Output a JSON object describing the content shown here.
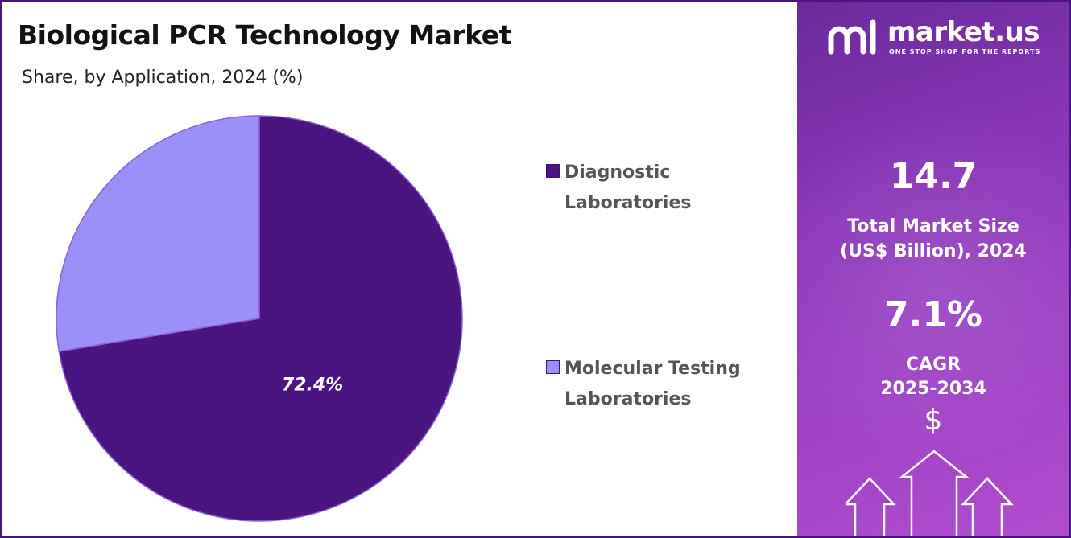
{
  "header": {
    "title": "Biological PCR Technology Market",
    "subtitle": "Share, by Application, 2024 (%)"
  },
  "chart_data": {
    "type": "pie",
    "title": "Biological PCR Technology Market",
    "subtitle": "Share, by Application, 2024 (%)",
    "categories": [
      "Diagnostic Laboratories",
      "Molecular Testing Laboratories"
    ],
    "values": [
      72.4,
      27.6
    ],
    "data_labels": [
      "72.4%",
      ""
    ],
    "colors": [
      "#4a1580",
      "#9b8ff8"
    ],
    "legend_position": "right"
  },
  "legend": [
    {
      "line1": "Diagnostic",
      "line2": "Laboratories",
      "color": "#4a1580"
    },
    {
      "line1": "Molecular Testing",
      "line2": "Laboratories",
      "color": "#9b8ff8"
    }
  ],
  "panel": {
    "brand": "market.us",
    "tagline": "ONE STOP SHOP FOR THE REPORTS",
    "market_size": "14.7",
    "market_size_label_1": "Total Market Size",
    "market_size_label_2": "(US$ Billion), 2024",
    "cagr": "7.1%",
    "cagr_label_1": "CAGR",
    "cagr_label_2": "2025-2034",
    "currency_symbol": "$",
    "icons": [
      "market-us-logo-icon",
      "dollar-icon",
      "arrow-up-icon"
    ]
  }
}
